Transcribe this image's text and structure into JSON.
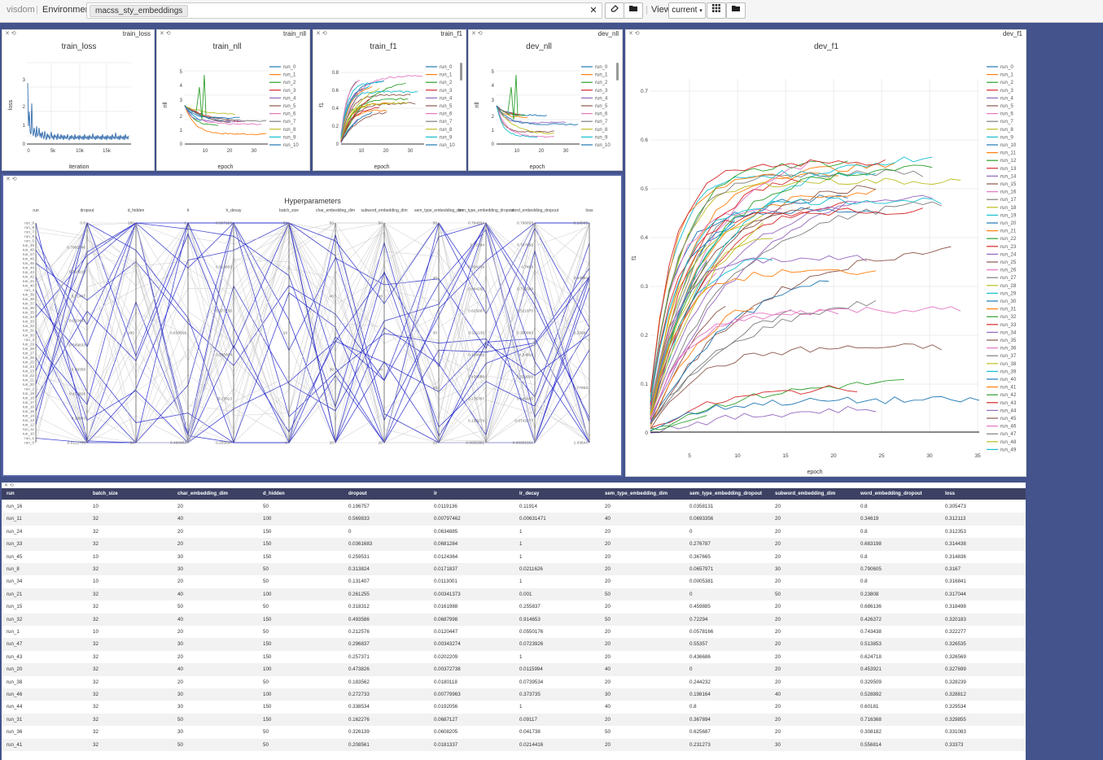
{
  "toolbar": {
    "brand": "visdom",
    "environment_label": "Environment",
    "environment_value": "macss_sty_embeddings",
    "view_label": "View",
    "view_value": "current"
  },
  "panes": {
    "train_loss": {
      "tag": "train_loss",
      "title": "train_loss",
      "xlabel": "iteration",
      "ylabel": "loss",
      "yticks": [
        "0",
        "1",
        "2",
        "3"
      ],
      "xticks": [
        "0",
        "5k",
        "10k",
        "15k"
      ]
    },
    "train_nll": {
      "tag": "train_nll",
      "title": "train_nll",
      "xlabel": "epoch",
      "ylabel": "nll",
      "yticks": [
        "0",
        "1",
        "2",
        "3",
        "4",
        "5"
      ],
      "xticks": [
        "10",
        "20",
        "30"
      ]
    },
    "train_f1": {
      "tag": "train_f1",
      "title": "train_f1",
      "xlabel": "epoch",
      "ylabel": "f1",
      "yticks": [
        "0",
        "0.2",
        "0.4",
        "0.6",
        "0.8"
      ],
      "xticks": [
        "10",
        "20",
        "30"
      ]
    },
    "dev_nll": {
      "tag": "dev_nll",
      "title": "dev_nll",
      "xlabel": "epoch",
      "ylabel": "nll",
      "yticks": [
        "0",
        "1",
        "2",
        "3",
        "4",
        "5"
      ],
      "xticks": [
        "10",
        "20",
        "30"
      ]
    },
    "dev_f1": {
      "tag": "dev_f1",
      "title": "dev_f1",
      "xlabel": "epoch",
      "ylabel": "f1",
      "yticks": [
        "0",
        "0.1",
        "0.2",
        "0.3",
        "0.4",
        "0.5",
        "0.6",
        "0.7"
      ],
      "xticks": [
        "5",
        "10",
        "15",
        "20",
        "25",
        "30",
        "35"
      ]
    },
    "hyper": {
      "title": "Hyperparameters"
    }
  },
  "small_legend": [
    "run_0",
    "run_1",
    "run_2",
    "run_3",
    "run_4",
    "run_5",
    "run_6",
    "run_7",
    "run_8",
    "run_9",
    "run_10"
  ],
  "big_legend": [
    "run_0",
    "run_1",
    "run_2",
    "run_3",
    "run_4",
    "run_5",
    "run_6",
    "run_7",
    "run_8",
    "run_9",
    "run_10",
    "run_11",
    "run_12",
    "run_13",
    "run_14",
    "run_15",
    "run_16",
    "run_17",
    "run_18",
    "run_19",
    "run_20",
    "run_21",
    "run_22",
    "run_23",
    "run_24",
    "run_25",
    "run_26",
    "run_27",
    "run_28",
    "run_29",
    "run_30",
    "run_31",
    "run_32",
    "run_33",
    "run_34",
    "run_35",
    "run_36",
    "run_37",
    "run_38",
    "run_39",
    "run_40",
    "run_41",
    "run_42",
    "run_43",
    "run_44",
    "run_45",
    "run_46",
    "run_47",
    "run_48",
    "run_49"
  ],
  "series_colors": [
    "#1f77b4",
    "#ff7f0e",
    "#2ca02c",
    "#d62728",
    "#9467bd",
    "#8c564b",
    "#e377c2",
    "#7f7f7f",
    "#bcbd22",
    "#17becf"
  ],
  "parcoords": {
    "axes": [
      "run",
      "dropout",
      "d_hidden",
      "lr",
      "lr_decay",
      "batch_size",
      "char_embedding_dim",
      "subword_embedding_dim",
      "sem_type_embedding_dim",
      "sem_type_embedding_dropout",
      "word_embedding_dropout",
      "loss"
    ],
    "run_ticks": [
      "run_9",
      "run_8",
      "run_7",
      "run_6",
      "run_5",
      "run_49",
      "run_48",
      "run_47",
      "run_46",
      "run_45",
      "run_44",
      "run_43",
      "run_42",
      "run_41",
      "run_40",
      "run_4",
      "run_39",
      "run_38",
      "run_37",
      "run_36",
      "run_35",
      "run_34",
      "run_33",
      "run_32",
      "run_31",
      "run_30",
      "run_3",
      "run_29",
      "run_28",
      "run_27",
      "run_26",
      "run_25",
      "run_24",
      "run_23",
      "run_22",
      "run_21",
      "run_20",
      "run_2",
      "run_19",
      "run_18",
      "run_17",
      "run_16",
      "run_15",
      "run_14",
      "run_13",
      "run_12",
      "run_11",
      "run_10",
      "run_1",
      "run_0"
    ],
    "dropout_ticks": [
      "0.8",
      "0.7865346",
      "0.754219",
      "0.71467",
      "0.610463",
      "0.569833",
      "0.49358",
      "0.473826",
      "0.39993",
      "0.0112708"
    ],
    "d_hidden_ticks": [
      "150",
      "100",
      "50"
    ],
    "lr_ticks": [
      "1",
      "0.638616",
      "0.498403"
    ],
    "lr_decay_ticks": [
      "0.997126",
      "0.914653",
      "0.373735",
      "0.336954",
      "0.27813",
      "0.255837"
    ],
    "batch_ticks": [
      "32",
      "16",
      "8"
    ],
    "char_ticks": [
      "50",
      "40",
      "30",
      "20"
    ],
    "subword_ticks": [
      "50",
      "40",
      "30",
      "20"
    ],
    "sem_ticks": [
      "50",
      "40",
      "30",
      "20",
      "10"
    ],
    "sem_drop_ticks": [
      "0.794934",
      "0.72294",
      "0.704159",
      "0.644262",
      "0.625687",
      "0.521135",
      "0.459885",
      "0.436686",
      "0.276787",
      "0.138179",
      "0.0005381"
    ],
    "word_drop_ticks": [
      "0.796858",
      "0.767656",
      "0.7499",
      "0.716368",
      "0.521875",
      "0.390893",
      "0.34619",
      "0.329509",
      "0.186845",
      "0.0743277",
      "0.00391551"
    ],
    "loss_ticks": [
      "3.16565",
      "2.83954",
      "2.32697",
      "1.77863",
      "1.43644"
    ]
  },
  "table": {
    "headers": [
      "run",
      "batch_size",
      "char_embedding_dim",
      "d_hidden",
      "dropout",
      "lr",
      "lr_decay",
      "sem_type_embedding_dim",
      "sem_type_embedding_dropout",
      "subword_embedding_dim",
      "word_embedding_dropout",
      "loss"
    ],
    "rows": [
      [
        "run_16",
        "10",
        "20",
        "50",
        "0.196757",
        "0.0119136",
        "0.11914",
        "20",
        "0.0358131",
        "20",
        "0.8",
        "0.305473"
      ],
      [
        "run_11",
        "32",
        "40",
        "100",
        "0.569833",
        "0.00797462",
        "0.00631471",
        "40",
        "0.0693356",
        "20",
        "0.34619",
        "0.312113"
      ],
      [
        "run_24",
        "32",
        "20",
        "150",
        "0",
        "0.0634885",
        "1",
        "20",
        "0",
        "20",
        "0.8",
        "0.312353"
      ],
      [
        "run_33",
        "32",
        "20",
        "150",
        "0.0361683",
        "0.0681284",
        "1",
        "20",
        "0.276787",
        "20",
        "0.683198",
        "0.314438"
      ],
      [
        "run_45",
        "10",
        "30",
        "150",
        "0.259531",
        "0.0124364",
        "1",
        "20",
        "0.367665",
        "20",
        "0.8",
        "0.314836"
      ],
      [
        "run_8",
        "32",
        "30",
        "50",
        "0.313824",
        "0.0171837",
        "0.0211626",
        "20",
        "0.0657971",
        "30",
        "0.790605",
        "0.3167"
      ],
      [
        "run_34",
        "10",
        "20",
        "50",
        "0.131407",
        "0.0113001",
        "1",
        "20",
        "0.0005381",
        "20",
        "0.8",
        "0.316841"
      ],
      [
        "run_21",
        "32",
        "40",
        "100",
        "0.261255",
        "0.00341373",
        "0.001",
        "50",
        "0",
        "50",
        "0.23808",
        "0.317044"
      ],
      [
        "run_15",
        "32",
        "50",
        "50",
        "0.318312",
        "0.0161988",
        "0.255837",
        "20",
        "0.459885",
        "20",
        "0.686136",
        "0.318498"
      ],
      [
        "run_32",
        "32",
        "40",
        "150",
        "0.493586",
        "0.0687998",
        "0.914653",
        "50",
        "0.72294",
        "20",
        "0.426372",
        "0.320183"
      ],
      [
        "run_1",
        "10",
        "20",
        "50",
        "0.212576",
        "0.0120447",
        "0.0550176",
        "20",
        "0.0578166",
        "20",
        "0.743438",
        "0.322277"
      ],
      [
        "run_47",
        "32",
        "30",
        "150",
        "0.296837",
        "0.00343274",
        "0.0723926",
        "20",
        "0.55357",
        "20",
        "0.513853",
        "0.326535"
      ],
      [
        "run_43",
        "32",
        "20",
        "150",
        "0.257371",
        "0.0202209",
        "1",
        "20",
        "0.436686",
        "20",
        "0.624718",
        "0.326569"
      ],
      [
        "run_20",
        "32",
        "40",
        "100",
        "0.473826",
        "0.00372738",
        "0.0115994",
        "40",
        "0",
        "20",
        "0.453921",
        "0.327699"
      ],
      [
        "run_38",
        "32",
        "20",
        "50",
        "0.183562",
        "0.0180118",
        "0.0739534",
        "20",
        "0.244232",
        "20",
        "0.329509",
        "0.328239"
      ],
      [
        "run_46",
        "32",
        "30",
        "100",
        "0.272733",
        "0.00779963",
        "0.373735",
        "30",
        "0.198164",
        "40",
        "0.528892",
        "0.328812"
      ],
      [
        "run_44",
        "32",
        "30",
        "150",
        "0.338534",
        "0.0192056",
        "1",
        "40",
        "0.8",
        "20",
        "0.60181",
        "0.329534"
      ],
      [
        "run_31",
        "32",
        "50",
        "150",
        "0.162276",
        "0.0687127",
        "0.09117",
        "20",
        "0.367894",
        "20",
        "0.716368",
        "0.329855"
      ],
      [
        "run_36",
        "32",
        "30",
        "50",
        "0.326139",
        "0.0608205",
        "0.041738",
        "50",
        "0.625687",
        "20",
        "0.308182",
        "0.331083"
      ],
      [
        "run_41",
        "32",
        "50",
        "50",
        "0.208561",
        "0.0181337",
        "0.0214416",
        "20",
        "0.231273",
        "30",
        "0.556814",
        "0.33373"
      ]
    ]
  }
}
